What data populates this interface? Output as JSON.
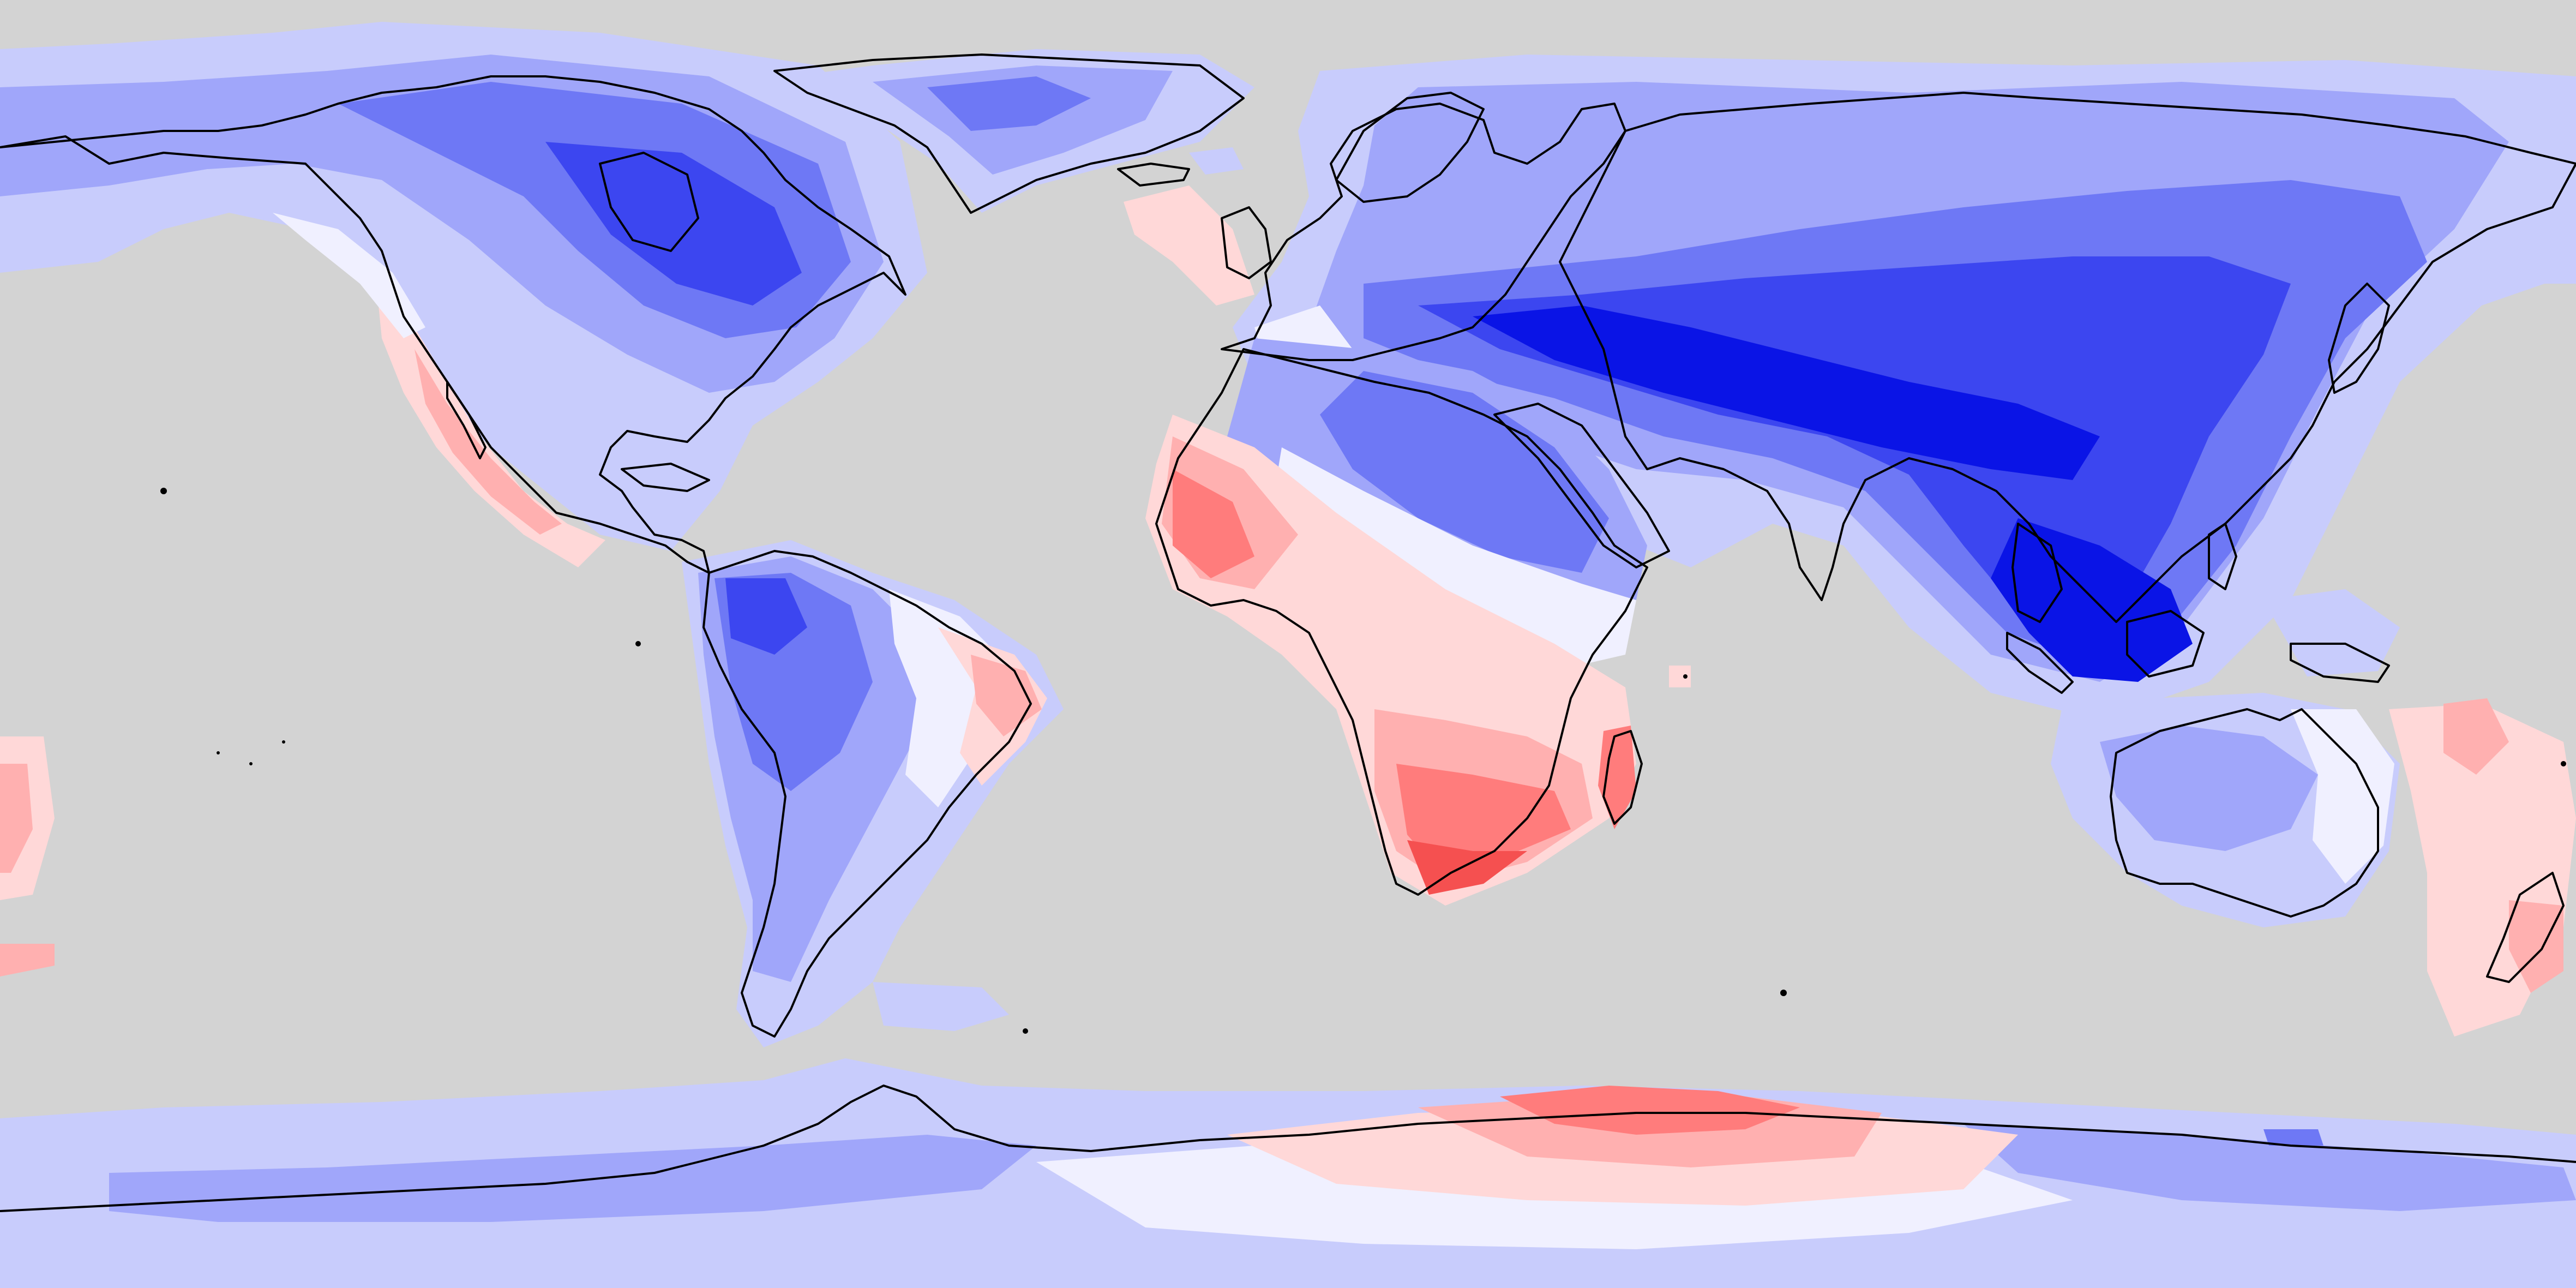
{
  "map": {
    "projection": "equirectangular",
    "ocean_color": "#d3d3d3",
    "coastline_color": "#000000",
    "legend": "none",
    "title": "",
    "palette": {
      "deep_blue": "#0a14e6",
      "blue": "#3c46f0",
      "mid_blue": "#6e78f5",
      "light_blue": "#a0a6fa",
      "pale_blue": "#c8ccfc",
      "white": "#f0f0ff",
      "pale_red": "#ffd8d8",
      "light_red": "#ffb0b0",
      "red": "#ff7c7c",
      "deep_red": "#f55050"
    }
  }
}
